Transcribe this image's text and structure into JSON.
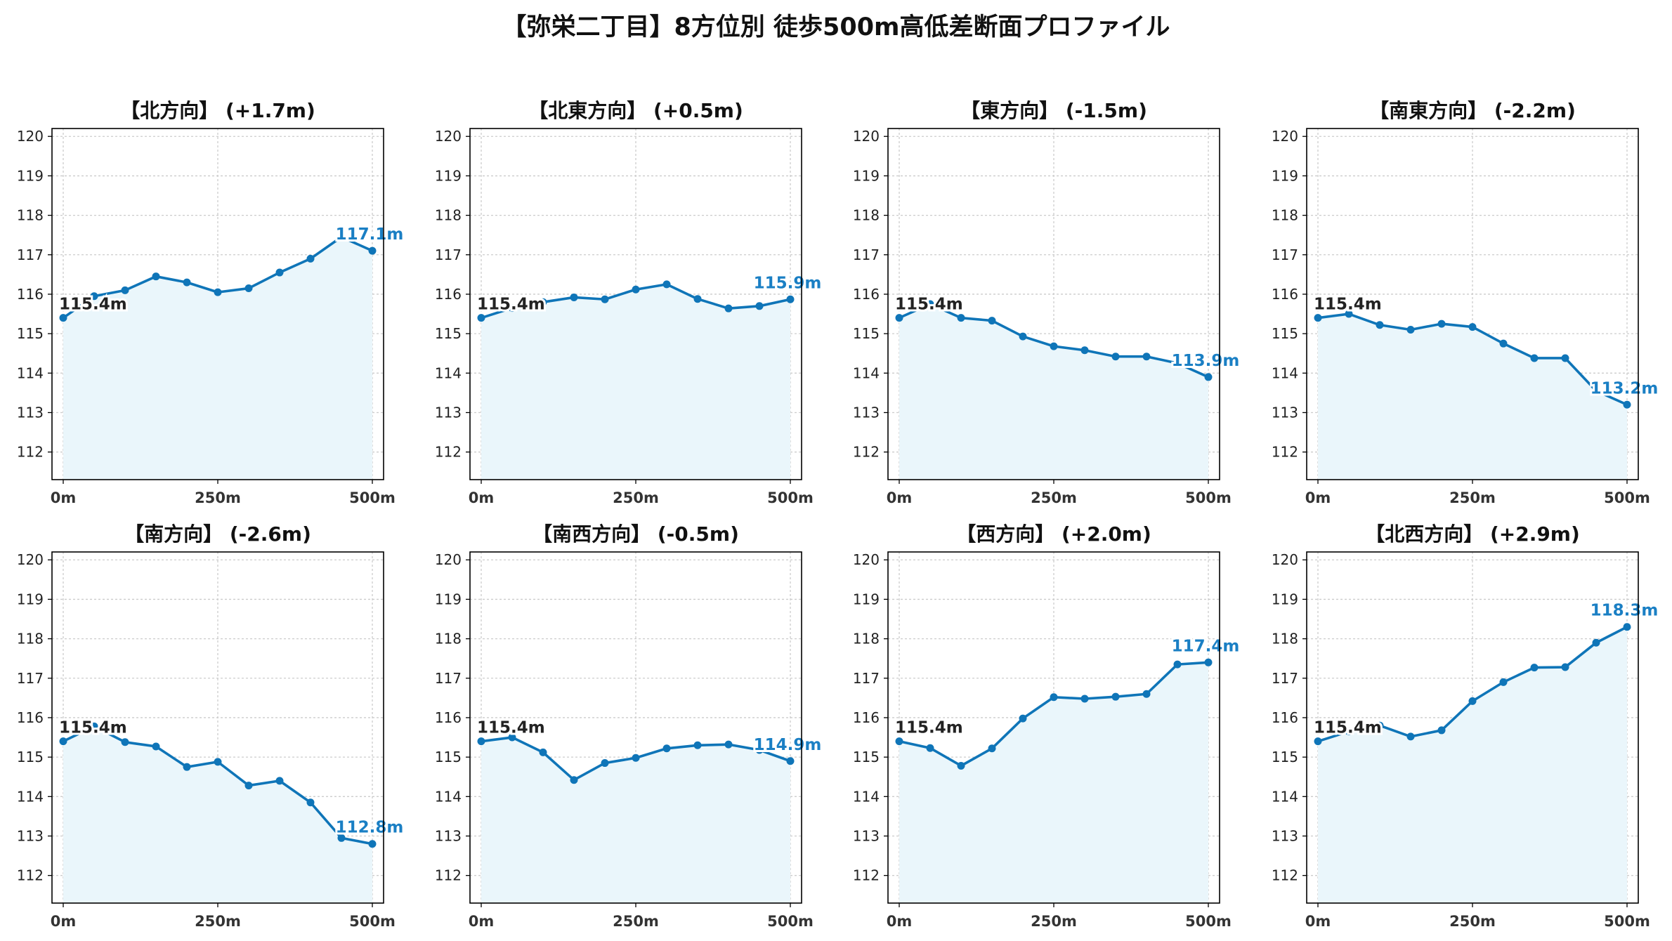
{
  "title": "【弥栄二丁目】8方位別 徒歩500m高低差断面プロファイル",
  "colors": {
    "line": "#0f75b8",
    "fill": "#eaf6fb",
    "start_label": "#222222",
    "end_label": "#1a7fc4",
    "grid": "#cccccc",
    "axis": "#000000"
  },
  "chart_data": [
    {
      "type": "line",
      "title": "【北方向】 (+1.7m)",
      "x": [
        0,
        50,
        100,
        150,
        200,
        250,
        300,
        350,
        400,
        450,
        500
      ],
      "y": [
        115.4,
        115.95,
        116.1,
        116.45,
        116.3,
        116.05,
        116.15,
        116.55,
        116.9,
        117.45,
        117.1
      ],
      "start_label": "115.4m",
      "end_label": "117.1m",
      "ylim": [
        111.3,
        120.2
      ],
      "yticks": [
        112,
        113,
        114,
        115,
        116,
        117,
        118,
        119,
        120
      ],
      "xticks": [
        0,
        250,
        500
      ],
      "xtick_labels": [
        "0m",
        "250m",
        "500m"
      ],
      "grid": true
    },
    {
      "type": "line",
      "title": "【北東方向】 (+0.5m)",
      "x": [
        0,
        50,
        100,
        150,
        200,
        250,
        300,
        350,
        400,
        450,
        500
      ],
      "y": [
        115.4,
        115.65,
        115.8,
        115.92,
        115.87,
        116.12,
        116.25,
        115.88,
        115.64,
        115.7,
        115.87
      ],
      "start_label": "115.4m",
      "end_label": "115.9m",
      "ylim": [
        111.3,
        120.2
      ],
      "yticks": [
        112,
        113,
        114,
        115,
        116,
        117,
        118,
        119,
        120
      ],
      "xticks": [
        0,
        250,
        500
      ],
      "xtick_labels": [
        "0m",
        "250m",
        "500m"
      ],
      "grid": true
    },
    {
      "type": "line",
      "title": "【東方向】 (-1.5m)",
      "x": [
        0,
        50,
        100,
        150,
        200,
        250,
        300,
        350,
        400,
        450,
        500
      ],
      "y": [
        115.4,
        115.75,
        115.4,
        115.33,
        114.93,
        114.68,
        114.58,
        114.42,
        114.42,
        114.25,
        113.9
      ],
      "start_label": "115.4m",
      "end_label": "113.9m",
      "ylim": [
        111.3,
        120.2
      ],
      "yticks": [
        112,
        113,
        114,
        115,
        116,
        117,
        118,
        119,
        120
      ],
      "xticks": [
        0,
        250,
        500
      ],
      "xtick_labels": [
        "0m",
        "250m",
        "500m"
      ],
      "grid": true
    },
    {
      "type": "line",
      "title": "【南東方向】 (-2.2m)",
      "x": [
        0,
        50,
        100,
        150,
        200,
        250,
        300,
        350,
        400,
        450,
        500
      ],
      "y": [
        115.4,
        115.5,
        115.22,
        115.1,
        115.25,
        115.17,
        114.75,
        114.38,
        114.38,
        113.55,
        113.2
      ],
      "start_label": "115.4m",
      "end_label": "113.2m",
      "ylim": [
        111.3,
        120.2
      ],
      "yticks": [
        112,
        113,
        114,
        115,
        116,
        117,
        118,
        119,
        120
      ],
      "xticks": [
        0,
        250,
        500
      ],
      "xtick_labels": [
        "0m",
        "250m",
        "500m"
      ],
      "grid": true
    },
    {
      "type": "line",
      "title": "【南方向】 (-2.6m)",
      "x": [
        0,
        50,
        100,
        150,
        200,
        250,
        300,
        350,
        400,
        450,
        500
      ],
      "y": [
        115.4,
        115.78,
        115.38,
        115.27,
        114.75,
        114.88,
        114.28,
        114.4,
        113.85,
        112.95,
        112.8
      ],
      "start_label": "115.4m",
      "end_label": "112.8m",
      "ylim": [
        111.3,
        120.2
      ],
      "yticks": [
        112,
        113,
        114,
        115,
        116,
        117,
        118,
        119,
        120
      ],
      "xticks": [
        0,
        250,
        500
      ],
      "xtick_labels": [
        "0m",
        "250m",
        "500m"
      ],
      "grid": true
    },
    {
      "type": "line",
      "title": "【南西方向】 (-0.5m)",
      "x": [
        0,
        50,
        100,
        150,
        200,
        250,
        300,
        350,
        400,
        450,
        500
      ],
      "y": [
        115.4,
        115.5,
        115.12,
        114.42,
        114.85,
        114.98,
        115.22,
        115.3,
        115.32,
        115.18,
        114.9
      ],
      "start_label": "115.4m",
      "end_label": "114.9m",
      "ylim": [
        111.3,
        120.2
      ],
      "yticks": [
        112,
        113,
        114,
        115,
        116,
        117,
        118,
        119,
        120
      ],
      "xticks": [
        0,
        250,
        500
      ],
      "xtick_labels": [
        "0m",
        "250m",
        "500m"
      ],
      "grid": true
    },
    {
      "type": "line",
      "title": "【西方向】 (+2.0m)",
      "x": [
        0,
        50,
        100,
        150,
        200,
        250,
        300,
        350,
        400,
        450,
        500
      ],
      "y": [
        115.4,
        115.23,
        114.78,
        115.22,
        115.98,
        116.52,
        116.48,
        116.53,
        116.6,
        117.35,
        117.4
      ],
      "start_label": "115.4m",
      "end_label": "117.4m",
      "ylim": [
        111.3,
        120.2
      ],
      "yticks": [
        112,
        113,
        114,
        115,
        116,
        117,
        118,
        119,
        120
      ],
      "xticks": [
        0,
        250,
        500
      ],
      "xtick_labels": [
        "0m",
        "250m",
        "500m"
      ],
      "grid": true
    },
    {
      "type": "line",
      "title": "【北西方向】 (+2.9m)",
      "x": [
        0,
        50,
        100,
        150,
        200,
        250,
        300,
        350,
        400,
        450,
        500
      ],
      "y": [
        115.4,
        115.65,
        115.8,
        115.52,
        115.68,
        116.42,
        116.9,
        117.27,
        117.28,
        117.9,
        118.3
      ],
      "start_label": "115.4m",
      "end_label": "118.3m",
      "ylim": [
        111.3,
        120.2
      ],
      "yticks": [
        112,
        113,
        114,
        115,
        116,
        117,
        118,
        119,
        120
      ],
      "xticks": [
        0,
        250,
        500
      ],
      "xtick_labels": [
        "0m",
        "250m",
        "500m"
      ],
      "grid": true
    }
  ]
}
